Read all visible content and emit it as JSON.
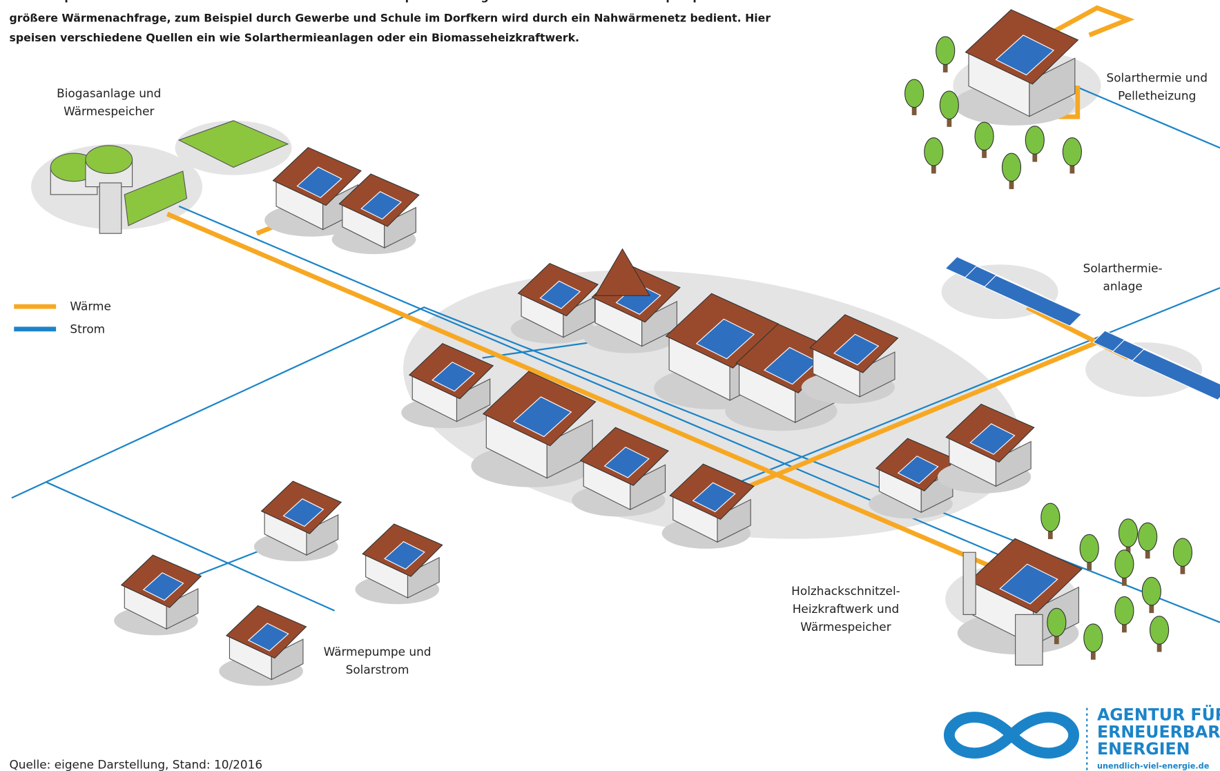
{
  "intro": [
    "zum Beispiel durch eine Kombination von Solarthermie und Holzpelletheizung oder Solarstrom und Wärmepumpe. Eine",
    "größere Wärmenachfrage, zum Beispiel durch Gewerbe und Schule im Dorfkern wird durch ein Nahwärmenetz bedient. Hier",
    "speisen verschiedene Quellen ein wie Solarthermieanlagen oder ein Biomasseheizkraftwerk."
  ],
  "labels": [
    {
      "lines": [
        "Biogasanlage und",
        "Wärmespeicher"
      ]
    },
    {
      "lines": [
        "Solarthermie und",
        "Pelletheizung"
      ]
    },
    {
      "lines": [
        "Solarthermie-",
        "anlage"
      ]
    },
    {
      "lines": [
        "Holzhackschnitzel-",
        "Heizkraftwerk und",
        "Wärmespeicher"
      ]
    },
    {
      "lines": [
        "Wärmepumpe und",
        "Solarstrom"
      ]
    }
  ],
  "legend": [
    {
      "label": "Wärme",
      "color": "#f7a823"
    },
    {
      "label": "Strom",
      "color": "#1b84c8"
    }
  ],
  "source": "Quelle: eigene Darstellung, Stand: 10/2016",
  "logo": {
    "lines": [
      "AGENTUR FÜR",
      "ERNEUERBARE",
      "ENERGIEN"
    ],
    "url": "unendlich-viel-energie.de"
  }
}
